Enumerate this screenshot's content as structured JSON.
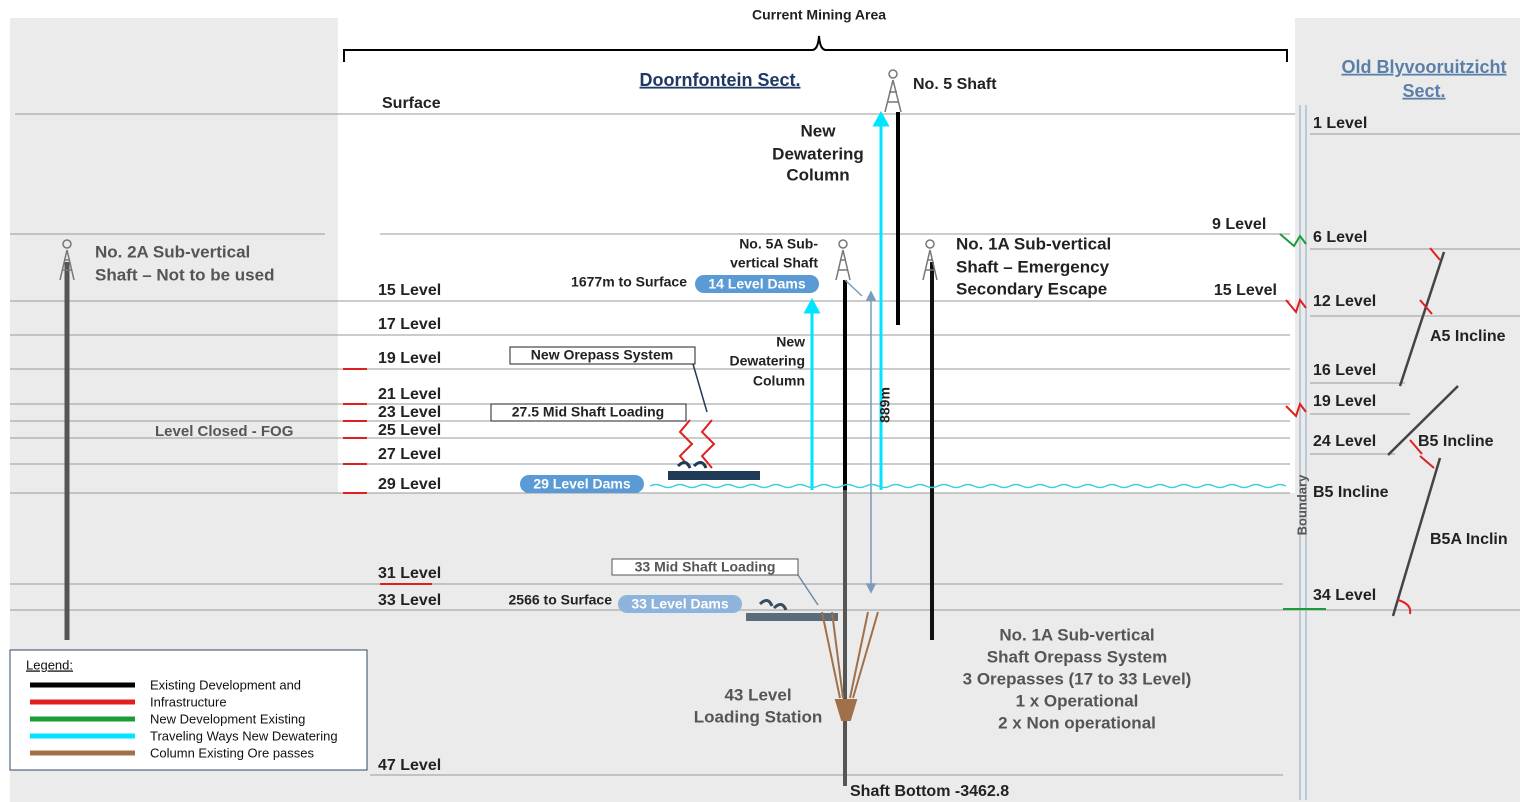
{
  "header": {
    "title": "Current Mining Area"
  },
  "sections": {
    "doornfontein": "Doornfontein Sect.",
    "old_blyvooruitzicht": [
      "Old Blyvooruitzicht",
      "Sect."
    ]
  },
  "levels_left": [
    "Surface",
    "15 Level",
    "17 Level",
    "19 Level",
    "21 Level",
    "23 Level",
    "25 Level",
    "27 Level",
    "29 Level",
    "31 Level",
    "33 Level",
    "47 Level"
  ],
  "levels_right": [
    "1 Level",
    "6 Level",
    "12 Level",
    "16 Level",
    "19 Level",
    "24 Level",
    "B5 Incline",
    "34 Level"
  ],
  "levels_mid": [
    "9 Level",
    "15 Level"
  ],
  "inclines": [
    "A5 Incline",
    "B5 Incline",
    "B5A Inclin"
  ],
  "boundary": "Boundary",
  "shafts": {
    "no5": "No. 5 Shaft",
    "no2a": [
      "No. 2A Sub-vertical",
      "Shaft – Not to be used"
    ],
    "no5a": [
      "No. 5A Sub-",
      "vertical Shaft"
    ],
    "no1a": [
      "No. 1A Sub-vertical",
      "Shaft – Emergency",
      "Secondary Escape"
    ],
    "bottom": "Shaft Bottom -3462.8"
  },
  "dewatering_upper": [
    "New",
    "Dewatering",
    "Column"
  ],
  "dewatering_lower": [
    "New",
    "Dewatering",
    "Column"
  ],
  "distances": {
    "d1677": "1677m to Surface",
    "d2566": "2566 to Surface",
    "d889": "889m"
  },
  "dams": [
    "14 Level Dams",
    "29 Level Dams",
    "33 Level Dams"
  ],
  "boxes": [
    "New Orepass System",
    "27.5 Mid Shaft Loading",
    "33 Mid Shaft Loading"
  ],
  "fog": "Level Closed - FOG",
  "orepass_note": [
    "No. 1A Sub-vertical",
    "Shaft Orepass System",
    "3 Orepasses (17 to 33 Level)",
    "1 x Operational",
    "2 x Non operational"
  ],
  "loading_station": [
    "43 Level",
    "Loading Station"
  ],
  "legend": {
    "title": "Legend:",
    "items": [
      "Existing Development and",
      "Infrastructure",
      "New Development Existing",
      "Traveling Ways New Dewatering",
      "Column Existing Ore passes"
    ]
  }
}
